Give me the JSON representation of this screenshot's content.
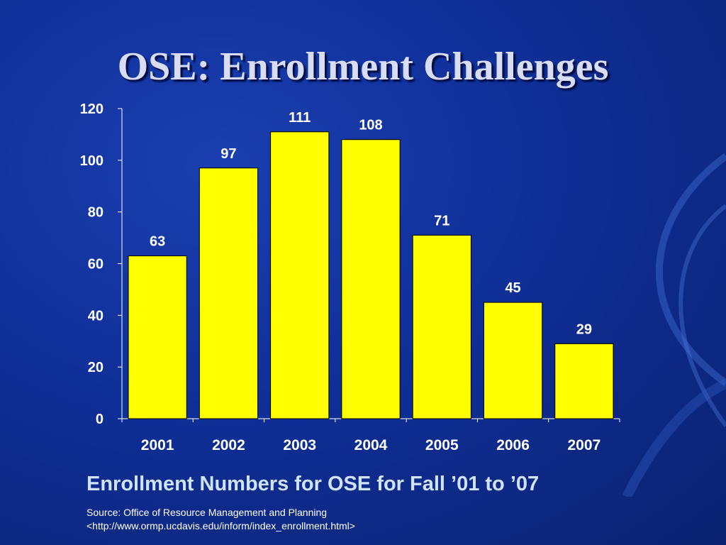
{
  "slide": {
    "title": "OSE: Enrollment Challenges",
    "caption": "Enrollment Numbers for OSE for Fall ’01 to ’07",
    "source_line1": "Source: Office of Resource Management and Planning",
    "source_line2": "<http://www.ormp.ucdavis.edu/inform/index_enrollment.html>"
  },
  "colors": {
    "background": "#1034a6",
    "bar": "#ffff00",
    "text": "#ffffff",
    "caption": "#cfe3ff"
  },
  "chart_data": {
    "type": "bar",
    "categories": [
      "2001",
      "2002",
      "2003",
      "2004",
      "2005",
      "2006",
      "2007"
    ],
    "values": [
      63,
      97,
      111,
      108,
      71,
      45,
      29
    ],
    "data_labels": [
      "63",
      "97",
      "111",
      "108",
      "71",
      "45",
      "29"
    ],
    "yticks": [
      0,
      20,
      40,
      60,
      80,
      100,
      120
    ],
    "ylim": [
      0,
      120
    ],
    "grid": false,
    "legend": "none",
    "xlabel": "",
    "ylabel": ""
  }
}
